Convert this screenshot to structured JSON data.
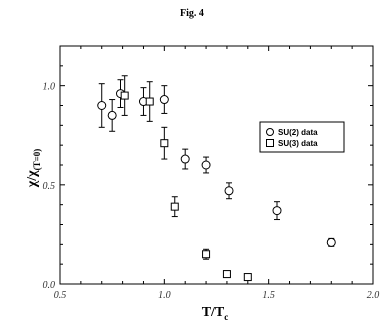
{
  "chart_data": {
    "type": "scatter",
    "title": "Fig. 4",
    "xlabel": "T/T",
    "xlabel_sub": "c",
    "ylabel": "χ/χ",
    "ylabel_sub": "(T=0)",
    "xlim": [
      0.5,
      2.0
    ],
    "ylim": [
      0.0,
      1.2
    ],
    "x_ticks": [
      {
        "value": 0.5,
        "label": "0.5"
      },
      {
        "value": 1.0,
        "label": "1.0"
      },
      {
        "value": 1.5,
        "label": "1.5"
      },
      {
        "value": 2.0,
        "label": "2.0"
      }
    ],
    "y_ticks": [
      {
        "value": 0.0,
        "label": "0.0"
      },
      {
        "value": 0.5,
        "label": "0.5"
      },
      {
        "value": 1.0,
        "label": "1.0"
      }
    ],
    "grid": false,
    "legend_position": "right",
    "series": [
      {
        "name": "SU(2) data",
        "marker": "circle",
        "points": [
          {
            "x": 0.7,
            "y": 0.9,
            "err": 0.11
          },
          {
            "x": 0.75,
            "y": 0.85,
            "err": 0.08
          },
          {
            "x": 0.79,
            "y": 0.96,
            "err": 0.07
          },
          {
            "x": 0.9,
            "y": 0.92,
            "err": 0.07
          },
          {
            "x": 1.0,
            "y": 0.93,
            "err": 0.07
          },
          {
            "x": 1.1,
            "y": 0.63,
            "err": 0.05
          },
          {
            "x": 1.2,
            "y": 0.6,
            "err": 0.04
          },
          {
            "x": 1.31,
            "y": 0.47,
            "err": 0.04
          },
          {
            "x": 1.54,
            "y": 0.37,
            "err": 0.045
          },
          {
            "x": 1.8,
            "y": 0.21,
            "err": 0.02
          }
        ]
      },
      {
        "name": "SU(3) data",
        "marker": "square",
        "points": [
          {
            "x": 0.81,
            "y": 0.95,
            "err": 0.1
          },
          {
            "x": 0.93,
            "y": 0.92,
            "err": 0.1
          },
          {
            "x": 1.0,
            "y": 0.71,
            "err": 0.08
          },
          {
            "x": 1.05,
            "y": 0.39,
            "err": 0.05
          },
          {
            "x": 1.2,
            "y": 0.15,
            "err": 0.025
          },
          {
            "x": 1.3,
            "y": 0.05,
            "err": 0.015
          },
          {
            "x": 1.4,
            "y": 0.035,
            "err": 0.01
          }
        ]
      }
    ]
  }
}
